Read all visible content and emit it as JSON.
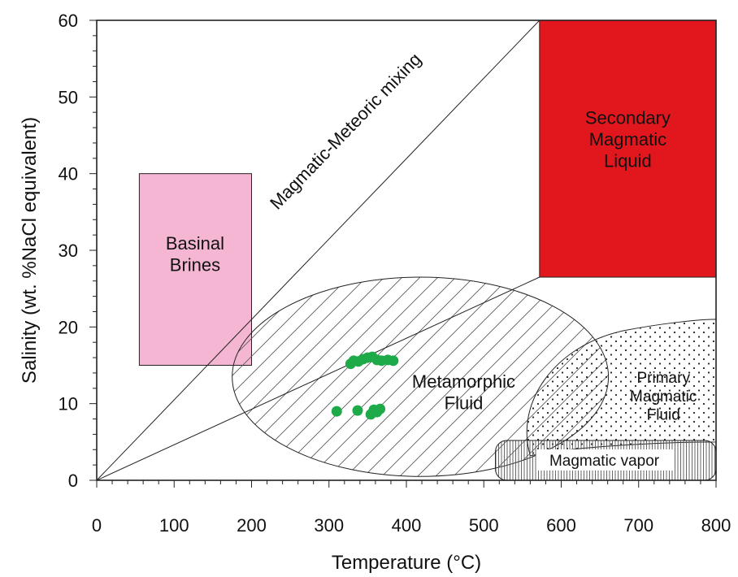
{
  "chart_data": {
    "type": "scatter",
    "xlabel": "Temperature (°C)",
    "ylabel": "Salinity (wt. %NaCl equivalent)",
    "xlim": [
      0,
      800
    ],
    "ylim": [
      0,
      60
    ],
    "x_ticks": [
      "0",
      "100",
      "200",
      "300",
      "400",
      "500",
      "600",
      "700",
      "800"
    ],
    "y_ticks": [
      "0",
      "10",
      "20",
      "30",
      "40",
      "50",
      "60"
    ],
    "grid": false,
    "colors": {
      "points": "#1faa4a",
      "basinal_brines": "#f4b6d2",
      "secondary_magmatic_liquid": "#e2171d",
      "outline": "#222222"
    },
    "regions": {
      "basinal_brines": {
        "label_lines": [
          "Basinal",
          "Brines"
        ],
        "x_range": [
          55,
          200
        ],
        "y_range": [
          15,
          40
        ]
      },
      "secondary_magmatic_liquid": {
        "label_lines": [
          "Secondary",
          "Magmatic",
          "Liquid"
        ],
        "x_range": [
          572,
          800
        ],
        "y_range": [
          26.5,
          60
        ]
      },
      "metamorphic_fluid": {
        "label_lines": [
          "Metamorphic",
          "Fluid"
        ],
        "center": [
          418,
          13.5
        ],
        "radius_x": 243,
        "radius_y": 13,
        "hatch": "diagonal"
      },
      "primary_magmatic_fluid": {
        "label_lines": [
          "Primary",
          "Magmatic",
          "Fluid"
        ],
        "hatch": "dots"
      },
      "magmatic_vapor": {
        "label": "Magmatic vapor",
        "x_range": [
          515,
          800
        ],
        "y_range": [
          0,
          5.2
        ],
        "hatch": "vertical"
      },
      "mixing_lines": {
        "label": "Magmatic-Meteoric mixing",
        "lines": [
          [
            [
              0,
              0
            ],
            [
              572,
              60
            ]
          ],
          [
            [
              0,
              0
            ],
            [
              572,
              26.5
            ]
          ]
        ]
      }
    },
    "series": [
      {
        "points": [
          [
            328,
            15.2
          ],
          [
            332,
            15.6
          ],
          [
            338,
            15.5
          ],
          [
            344,
            15.8
          ],
          [
            350,
            16.0
          ],
          [
            356,
            16.1
          ],
          [
            362,
            15.7
          ],
          [
            368,
            15.6
          ],
          [
            376,
            15.7
          ],
          [
            383,
            15.6
          ],
          [
            310,
            9.0
          ],
          [
            337,
            9.1
          ],
          [
            354,
            8.6
          ],
          [
            358,
            9.2
          ],
          [
            362,
            8.9
          ],
          [
            366,
            9.3
          ]
        ]
      }
    ]
  }
}
